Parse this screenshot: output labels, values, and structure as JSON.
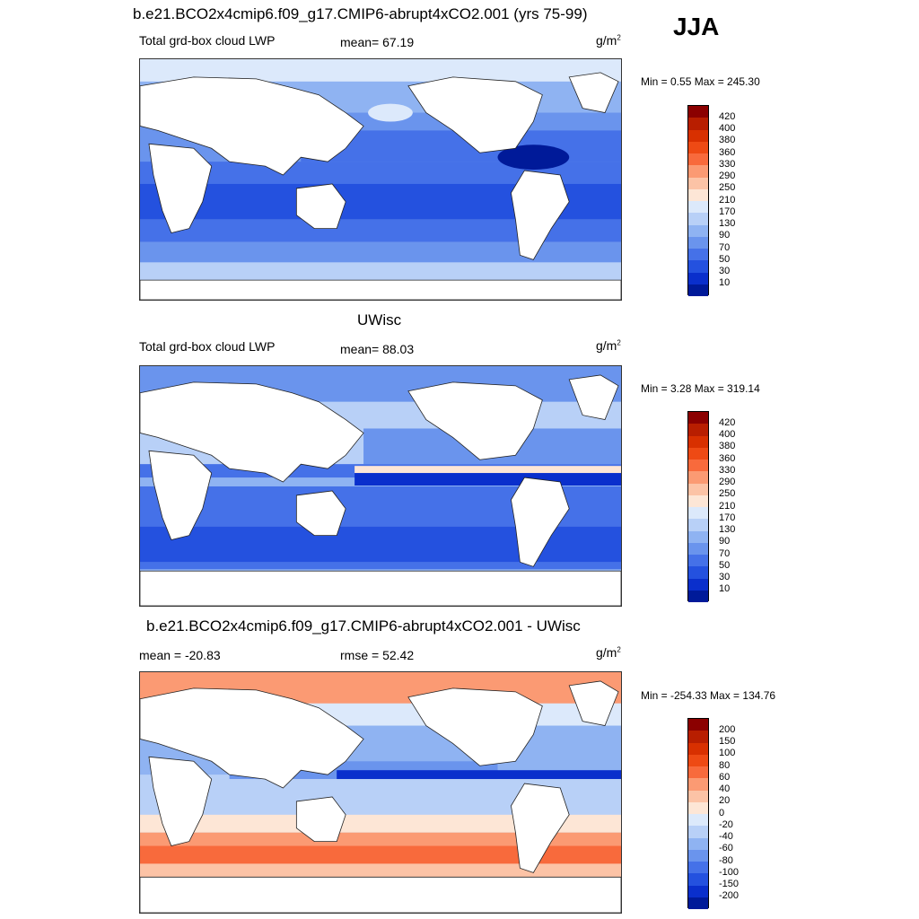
{
  "season": "JJA",
  "units_base": "g/m",
  "units_exp": "2",
  "panels": [
    {
      "title": "b.e21.BCO2x4cmip6.f09_g17.CMIP6-abrupt4xCO2.001 (yrs 75-99)",
      "left_label": "Total grd-box cloud LWP",
      "stat_label": "mean=  67.19",
      "minmax": "Min =   0.55 Max = 245.30",
      "palette": "abs"
    },
    {
      "title": "UWisc",
      "left_label": "Total grd-box cloud LWP",
      "stat_label": "mean=  88.03",
      "minmax": "Min =   3.28 Max = 319.14",
      "palette": "abs"
    },
    {
      "title": "b.e21.BCO2x4cmip6.f09_g17.CMIP6-abrupt4xCO2.001 - UWisc",
      "left_label": "mean = -20.83",
      "stat_label": "rmse =  52.42",
      "minmax": "Min = -254.33 Max = 134.76",
      "palette": "diff"
    }
  ],
  "colorbars": {
    "abs": {
      "labels": [
        "420",
        "400",
        "380",
        "360",
        "330",
        "290",
        "250",
        "210",
        "170",
        "130",
        "90",
        "70",
        "50",
        "30",
        "10"
      ],
      "colors": [
        "#8b0000",
        "#b81e00",
        "#d83000",
        "#ee4a14",
        "#f86a3c",
        "#fb9a73",
        "#fcc3a6",
        "#fde6d6",
        "#dce9fb",
        "#b8d0f7",
        "#8fb3f2",
        "#6a94ed",
        "#4571e8",
        "#2451df",
        "#0a2fcc",
        "#001a99"
      ]
    },
    "diff": {
      "labels": [
        "200",
        "150",
        "100",
        "80",
        "60",
        "40",
        "20",
        "0",
        "-20",
        "-40",
        "-60",
        "-80",
        "-100",
        "-150",
        "-200"
      ],
      "colors": [
        "#8b0000",
        "#b81e00",
        "#d83000",
        "#ee4a14",
        "#f86a3c",
        "#fb9a73",
        "#fcc3a6",
        "#fde6d6",
        "#dce9fb",
        "#b8d0f7",
        "#8fb3f2",
        "#6a94ed",
        "#4571e8",
        "#2451df",
        "#0a2fcc",
        "#001a99"
      ]
    }
  }
}
